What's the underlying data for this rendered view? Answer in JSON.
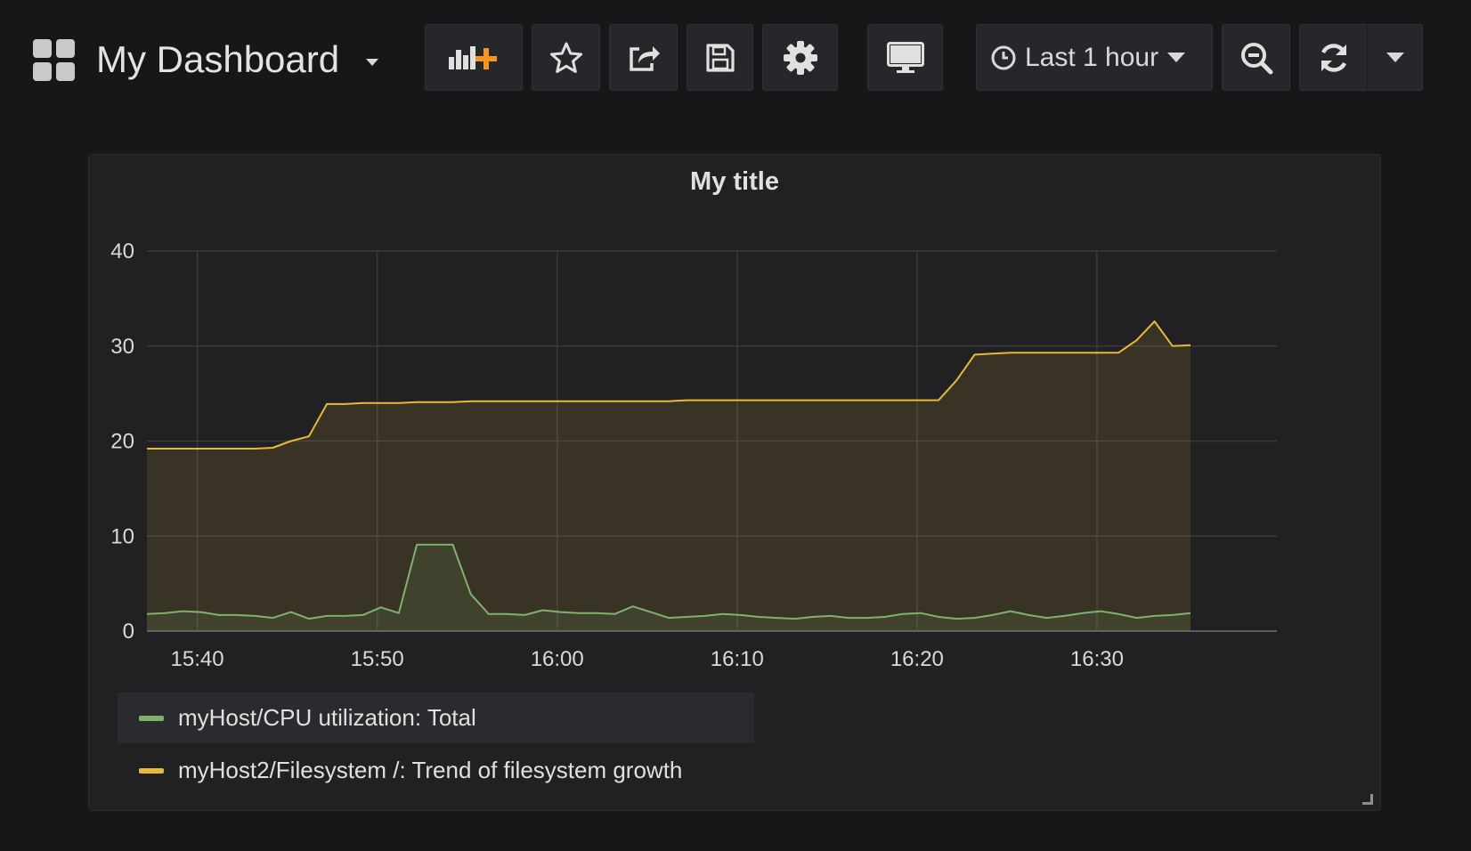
{
  "header": {
    "title": "My Dashboard",
    "time_range_label": "Last 1 hour"
  },
  "toolbar": {
    "icons": [
      "add-panel-icon",
      "star-icon",
      "share-icon",
      "save-icon",
      "gear-icon",
      "monitor-icon",
      "clock-icon",
      "zoom-out-icon",
      "refresh-icon",
      "chevron-down-icon"
    ]
  },
  "colors": {
    "background": "#161719",
    "panel": "#212124",
    "green_series": "#7eb26d",
    "yellow_series": "#eab839",
    "accent_orange": "#f79520"
  },
  "panel": {
    "title": "My title"
  },
  "chart_data": {
    "type": "area",
    "title": "My title",
    "xlabel": "",
    "ylabel": "",
    "ylim": [
      0,
      40
    ],
    "yticks": [
      "0",
      "10",
      "20",
      "30",
      "40"
    ],
    "x_start_minutes": 937.2,
    "x_end_minutes": 1000,
    "xticks": [
      {
        "label": "15:40",
        "minutes": 940
      },
      {
        "label": "15:50",
        "minutes": 950
      },
      {
        "label": "16:00",
        "minutes": 960
      },
      {
        "label": "16:10",
        "minutes": 970
      },
      {
        "label": "16:20",
        "minutes": 980
      },
      {
        "label": "16:30",
        "minutes": 990
      }
    ],
    "x": [
      937.2,
      938.2,
      939.2,
      940.2,
      941.2,
      942.2,
      943.2,
      944.2,
      945.2,
      946.2,
      947.2,
      948.2,
      949.2,
      950.2,
      951.2,
      952.2,
      953.2,
      954.2,
      955.2,
      956.2,
      957.2,
      958.2,
      959.2,
      960.2,
      961.2,
      962.2,
      963.2,
      964.2,
      965.2,
      966.2,
      967.2,
      968.2,
      969.2,
      970.2,
      971.2,
      972.2,
      973.2,
      974.2,
      975.2,
      976.2,
      977.2,
      978.2,
      979.2,
      980.2,
      981.2,
      982.2,
      983.2,
      984.2,
      985.2,
      986.2,
      987.2,
      988.2,
      989.2,
      990.2,
      991.2,
      992.2,
      993.2,
      994.2,
      995.2
    ],
    "series": [
      {
        "name": "myHost/CPU utilization: Total",
        "color": "#7eb26d",
        "values": [
          1.8,
          1.9,
          2.1,
          2.0,
          1.7,
          1.7,
          1.6,
          1.4,
          2.0,
          1.3,
          1.6,
          1.6,
          1.7,
          2.5,
          1.9,
          9.1,
          9.1,
          9.1,
          3.9,
          1.8,
          1.8,
          1.7,
          2.2,
          2.0,
          1.9,
          1.9,
          1.8,
          2.6,
          2.0,
          1.4,
          1.5,
          1.6,
          1.8,
          1.7,
          1.5,
          1.4,
          1.3,
          1.5,
          1.6,
          1.4,
          1.4,
          1.5,
          1.8,
          1.9,
          1.5,
          1.3,
          1.4,
          1.7,
          2.1,
          1.7,
          1.4,
          1.6,
          1.9,
          2.1,
          1.8,
          1.4,
          1.6,
          1.7,
          1.9
        ]
      },
      {
        "name": "myHost2/Filesystem /: Trend of filesystem growth",
        "color": "#eab839",
        "values": [
          19.2,
          19.2,
          19.2,
          19.2,
          19.2,
          19.2,
          19.2,
          19.3,
          20.0,
          20.5,
          23.9,
          23.9,
          24.0,
          24.0,
          24.0,
          24.1,
          24.1,
          24.1,
          24.2,
          24.2,
          24.2,
          24.2,
          24.2,
          24.2,
          24.2,
          24.2,
          24.2,
          24.2,
          24.2,
          24.2,
          24.3,
          24.3,
          24.3,
          24.3,
          24.3,
          24.3,
          24.3,
          24.3,
          24.3,
          24.3,
          24.3,
          24.3,
          24.3,
          24.3,
          24.3,
          26.4,
          29.1,
          29.2,
          29.3,
          29.3,
          29.3,
          29.3,
          29.3,
          29.3,
          29.3,
          30.6,
          32.6,
          30.0,
          30.1
        ]
      }
    ],
    "legend": {
      "position": "bottom"
    },
    "grid": true
  }
}
